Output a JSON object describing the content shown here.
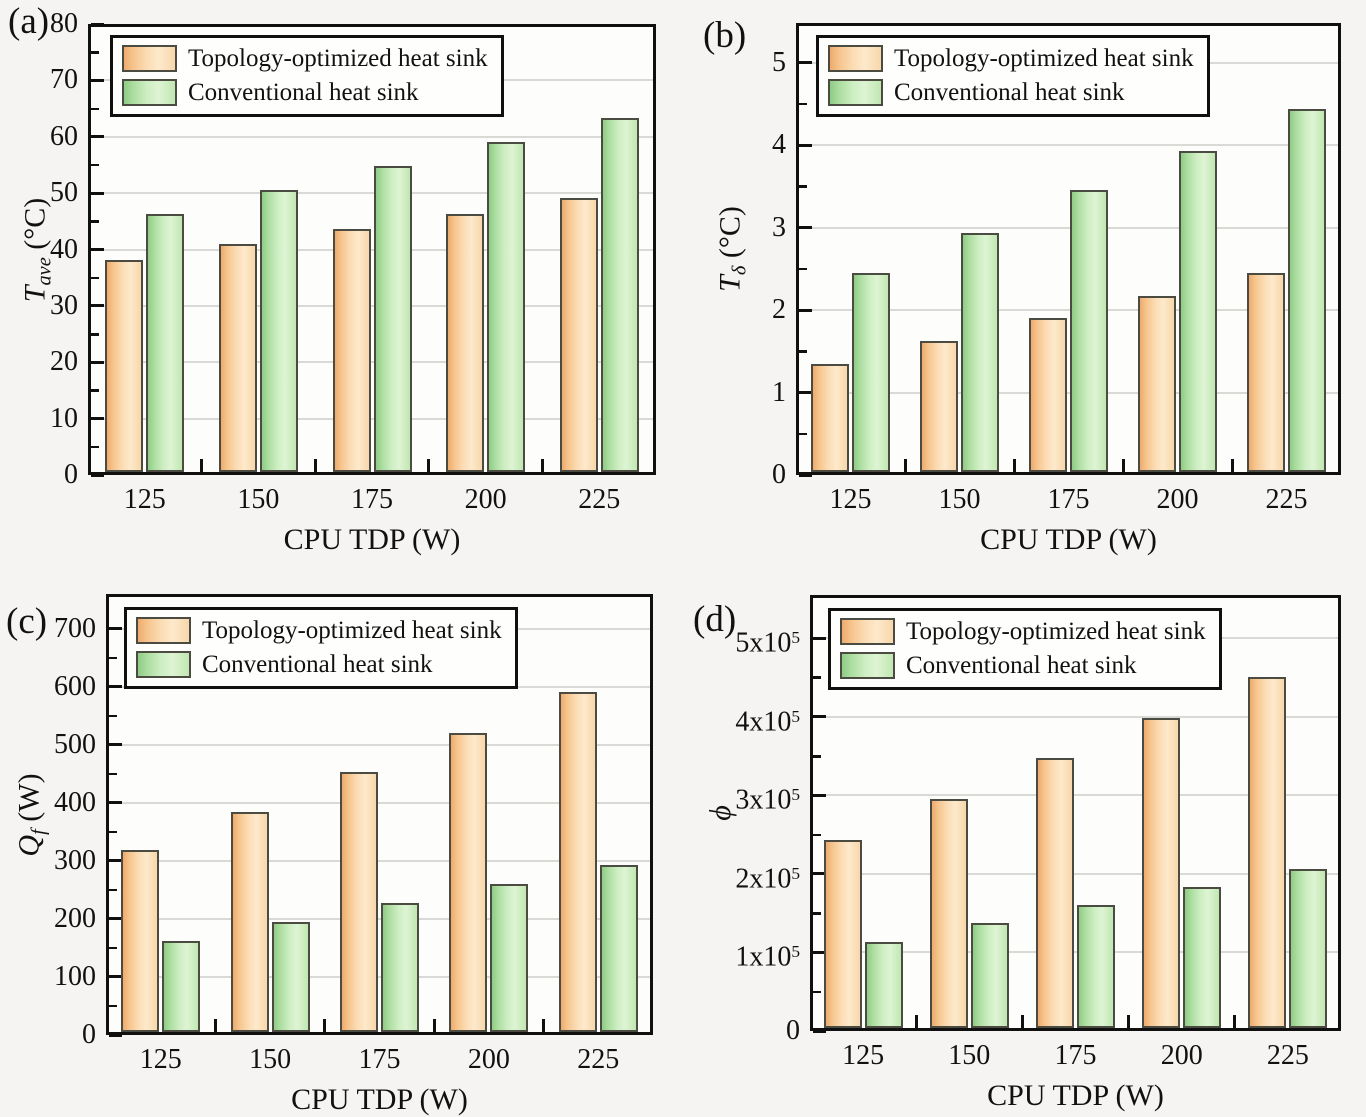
{
  "figure": {
    "kind": "scientific-figure",
    "grid": "2x2",
    "colors": {
      "background": "#f5f4f2",
      "plot_background": "#fdfdfc",
      "axis": "#101010",
      "grid": "#d9d9d6",
      "text": "#111111",
      "bar_edge": "#4b4b42",
      "topology_fill_stops": [
        "#eeab6e",
        "#f6c48c",
        "#fbdcb4",
        "#fde9cb",
        "#f8d7ab"
      ],
      "conventional_fill_stops": [
        "#8fcc86",
        "#abdd9f",
        "#cdeec2",
        "#def4d3",
        "#c0e7b2"
      ]
    }
  },
  "legend_labels": [
    "Topology-optimized heat sink",
    "Conventional heat sink"
  ],
  "chart_data": [
    {
      "type": "bar",
      "panel_label": "(a)",
      "xlabel": "CPU TDP (W)",
      "ylabel": {
        "var": "T",
        "sub": "ave",
        "unit": "(°C)",
        "text": "T_ave (°C)"
      },
      "categories": [
        "125",
        "150",
        "175",
        "200",
        "225"
      ],
      "series": [
        {
          "name": "Topology-optimized heat sink",
          "key": "topology",
          "values": [
            38.1,
            40.9,
            43.6,
            46.3,
            49.1
          ]
        },
        {
          "name": "Conventional heat sink",
          "key": "conventional",
          "values": [
            46.3,
            50.5,
            54.8,
            59.1,
            63.3
          ]
        }
      ],
      "ylim": [
        0,
        80
      ],
      "yticks": [
        0,
        10,
        20,
        30,
        40,
        50,
        60,
        70,
        80
      ],
      "ytick_labels": [
        "0",
        "10",
        "20",
        "30",
        "40",
        "50",
        "60",
        "70",
        "80"
      ],
      "grid": true,
      "legend_position": "top-left"
    },
    {
      "type": "bar",
      "panel_label": "(b)",
      "xlabel": "CPU TDP (W)",
      "ylabel": {
        "var": "T",
        "sub": "δ",
        "unit": "(°C)",
        "text": "T_δ (°C)"
      },
      "categories": [
        "125",
        "150",
        "175",
        "200",
        "225"
      ],
      "series": [
        {
          "name": "Topology-optimized heat sink",
          "key": "topology",
          "values": [
            1.35,
            1.62,
            1.9,
            2.17,
            2.45
          ]
        },
        {
          "name": "Conventional heat sink",
          "key": "conventional",
          "values": [
            2.45,
            2.94,
            3.45,
            3.93,
            4.44
          ]
        }
      ],
      "ylim": [
        0,
        5.48
      ],
      "yticks": [
        0,
        1,
        2,
        3,
        4,
        5
      ],
      "ytick_labels": [
        "0",
        "1",
        "2",
        "3",
        "4",
        "5"
      ],
      "grid": true,
      "legend_position": "top-left"
    },
    {
      "type": "bar",
      "panel_label": "(c)",
      "xlabel": "CPU TDP (W)",
      "ylabel": {
        "var": "Q",
        "sub": "f",
        "unit": "(W)",
        "text": "Q_f (W)"
      },
      "categories": [
        "125",
        "150",
        "175",
        "200",
        "225"
      ],
      "series": [
        {
          "name": "Topology-optimized heat sink",
          "key": "topology",
          "values": [
            318,
            385,
            453,
            520,
            591
          ]
        },
        {
          "name": "Conventional heat sink",
          "key": "conventional",
          "values": [
            162,
            195,
            228,
            260,
            293
          ]
        }
      ],
      "ylim": [
        0,
        760
      ],
      "yticks": [
        0,
        100,
        200,
        300,
        400,
        500,
        600,
        700
      ],
      "ytick_labels": [
        "0",
        "100",
        "200",
        "300",
        "400",
        "500",
        "600",
        "700"
      ],
      "grid": true,
      "legend_position": "top-left"
    },
    {
      "type": "bar",
      "panel_label": "(d)",
      "xlabel": "CPU TDP (W)",
      "ylabel": {
        "var": "ϕ",
        "sub": "",
        "unit": "",
        "text": "ϕ"
      },
      "categories": [
        "125",
        "150",
        "175",
        "200",
        "225"
      ],
      "series": [
        {
          "name": "Topology-optimized heat sink",
          "key": "topology",
          "values": [
            243000,
            295000,
            347000,
            398000,
            450000
          ]
        },
        {
          "name": "Conventional heat sink",
          "key": "conventional",
          "values": [
            113000,
            137000,
            160000,
            183000,
            206000
          ]
        }
      ],
      "ylim": [
        0,
        555000
      ],
      "yticks": [
        0,
        100000,
        200000,
        300000,
        400000,
        500000
      ],
      "ytick_labels": [
        "0",
        "1x10^5",
        "2x10^5",
        "3x10^5",
        "4x10^5",
        "5x10^5"
      ],
      "grid": true,
      "legend_position": "top-left"
    }
  ]
}
